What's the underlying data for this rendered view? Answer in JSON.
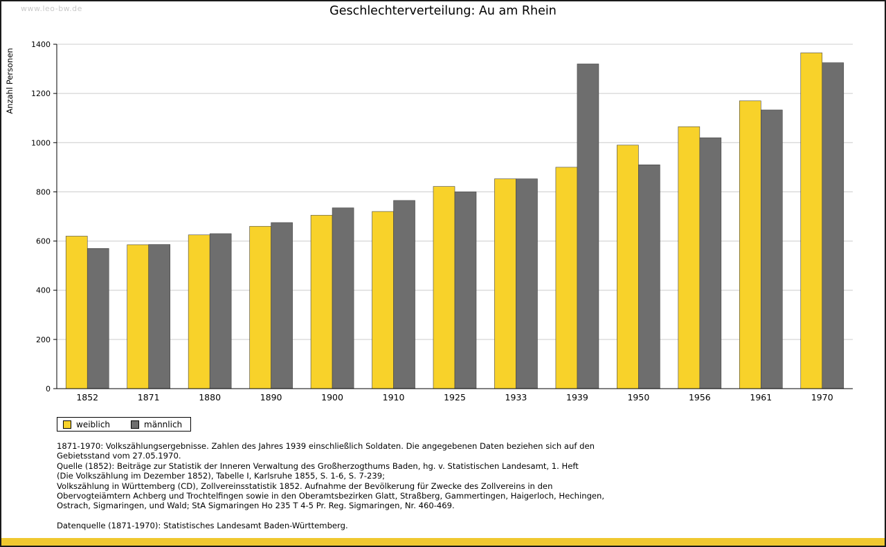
{
  "page": {
    "watermark": "www.leo-bw.de"
  },
  "chart_data": {
    "type": "bar",
    "title": "Geschlechterverteilung: Au am Rhein",
    "xlabel": "",
    "ylabel": "Anzahl Personen",
    "ylim": [
      0,
      1400
    ],
    "ytick_step": 200,
    "grid": true,
    "legend_position": "bottom-left",
    "categories": [
      "1852",
      "1871",
      "1880",
      "1890",
      "1900",
      "1910",
      "1925",
      "1933",
      "1939",
      "1950",
      "1956",
      "1961",
      "1970"
    ],
    "series": [
      {
        "name": "weiblich",
        "color": "#F8D22A",
        "values": [
          620,
          585,
          625,
          660,
          705,
          720,
          822,
          853,
          900,
          990,
          1065,
          1170,
          1365
        ]
      },
      {
        "name": "männlich",
        "color": "#6E6E6E",
        "values": [
          570,
          586,
          630,
          675,
          735,
          765,
          800,
          853,
          1320,
          910,
          1020,
          1133,
          1325
        ]
      }
    ]
  },
  "footer": {
    "lines": [
      "1871-1970: Volkszählungsergebnisse. Zahlen des Jahres 1939 einschließlich Soldaten. Die angegebenen Daten beziehen sich auf den",
      "Gebietsstand vom 27.05.1970.",
      "Quelle (1852): Beiträge zur Statistik der Inneren Verwaltung des Großherzogthums Baden, hg. v. Statistischen Landesamt, 1. Heft",
      "(Die Volkszählung im Dezember 1852), Tabelle I, Karlsruhe 1855, S. 1-6, S. 7-239;",
      "Volkszählung in Württemberg (CD), Zollvereinsstatistik 1852. Aufnahme der Bevölkerung für Zwecke des Zollvereins in den",
      "Obervogteiämtern Achberg und Trochtelfingen sowie in den Oberamtsbezirken Glatt, Straßberg, Gammertingen, Haigerloch, Hechingen,",
      "Ostrach, Sigmaringen, und Wald; StA Sigmaringen Ho 235 T 4-5 Pr. Reg. Sigmaringen, Nr. 460-469."
    ],
    "datasource": "Datenquelle (1871-1970): Statistisches Landesamt Baden-Württemberg."
  },
  "colors": {
    "grid": "#cccccc",
    "axis": "#000000",
    "accent_bar": "#F0C830",
    "bar_stroke": "#444444"
  }
}
